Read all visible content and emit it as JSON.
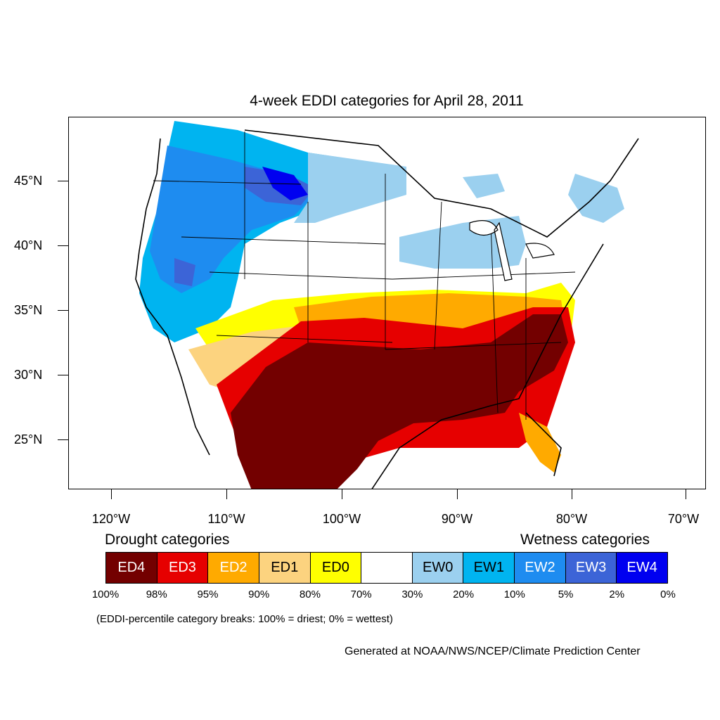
{
  "title": "4-week EDDI categories for April 28, 2011",
  "lat_labels": [
    "45°N",
    "40°N",
    "35°N",
    "30°N",
    "25°N"
  ],
  "lon_labels": [
    "120°W",
    "110°W",
    "100°W",
    "90°W",
    "80°W",
    "70°W"
  ],
  "legend": {
    "drought_heading": "Drought categories",
    "wetness_heading": "Wetness categories",
    "categories": [
      {
        "label": "ED4",
        "color": "#730000",
        "text_color": "#ffffff"
      },
      {
        "label": "ED3",
        "color": "#e60000",
        "text_color": "#ffffff"
      },
      {
        "label": "ED2",
        "color": "#ffaa00",
        "text_color": "#ffffff"
      },
      {
        "label": "ED1",
        "color": "#fcd37f",
        "text_color": "#000000"
      },
      {
        "label": "ED0",
        "color": "#ffff00",
        "text_color": "#000000"
      },
      {
        "label": "",
        "color": "#ffffff",
        "text_color": "#000000"
      },
      {
        "label": "EW0",
        "color": "#9bd0ef",
        "text_color": "#000000"
      },
      {
        "label": "EW1",
        "color": "#00b4f0",
        "text_color": "#000000"
      },
      {
        "label": "EW2",
        "color": "#1e8cf0",
        "text_color": "#ffffff"
      },
      {
        "label": "EW3",
        "color": "#3c64d7",
        "text_color": "#ffffff"
      },
      {
        "label": "EW4",
        "color": "#0000f0",
        "text_color": "#ffffff"
      }
    ],
    "breaks": [
      "100%",
      "98%",
      "95%",
      "90%",
      "80%",
      "70%",
      "30%",
      "20%",
      "10%",
      "5%",
      "2%",
      "0%"
    ]
  },
  "note": "(EDDI-percentile category breaks: 100% = driest; 0% = wettest)",
  "credit": "Generated at NOAA/NWS/NCEP/Climate Prediction Center"
}
